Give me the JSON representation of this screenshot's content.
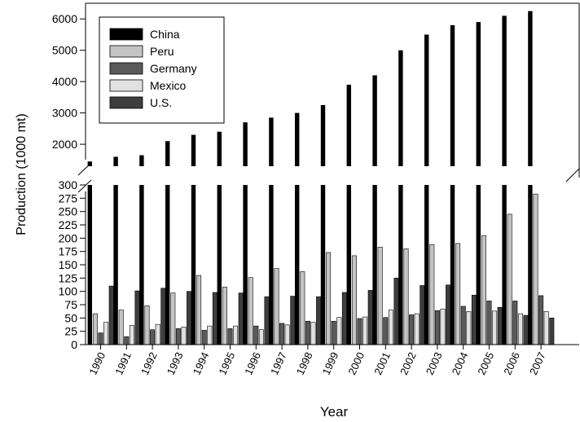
{
  "chart_data": {
    "type": "bar",
    "xlabel": "Year",
    "ylabel": "Production (1000 mt)",
    "categories": [
      "1990",
      "1991",
      "1992",
      "1993",
      "1994",
      "1995",
      "1996",
      "1997",
      "1998",
      "1999",
      "2000",
      "2001",
      "2002",
      "2003",
      "2004",
      "2005",
      "2006",
      "2007"
    ],
    "axis_break": true,
    "upper_ylim": [
      1300,
      6500
    ],
    "upper_ticks": [
      2000,
      3000,
      4000,
      5000,
      6000
    ],
    "lower_ylim": [
      0,
      300
    ],
    "lower_ticks": [
      0,
      25,
      50,
      75,
      100,
      125,
      150,
      175,
      200,
      225,
      250,
      275,
      300
    ],
    "legend_position": "top-left",
    "grid": false,
    "series": [
      {
        "name": "China",
        "color": "#000000",
        "values": [
          1450,
          1600,
          1650,
          2100,
          2300,
          2400,
          2700,
          2850,
          3000,
          3250,
          3900,
          4200,
          5000,
          5500,
          5800,
          5900,
          6100,
          6250
        ]
      },
      {
        "name": "Peru",
        "color": "#c4c4c4",
        "values": [
          58,
          65,
          73,
          97,
          130,
          108,
          126,
          143,
          137,
          173,
          167,
          183,
          180,
          188,
          190,
          205,
          245,
          283
        ]
      },
      {
        "name": "Germany",
        "color": "#5a5a5a",
        "values": [
          22,
          15,
          28,
          30,
          27,
          30,
          35,
          40,
          44,
          44,
          49,
          51,
          56,
          64,
          72,
          82,
          82,
          92
        ]
      },
      {
        "name": "Mexico",
        "color": "#e1e1e1",
        "values": [
          42,
          36,
          38,
          33,
          35,
          35,
          28,
          37,
          42,
          51,
          52,
          65,
          58,
          67,
          62,
          63,
          58,
          62
        ]
      },
      {
        "name": "U.S.",
        "color": "#3e3e3e",
        "values": [
          110,
          101,
          106,
          100,
          98,
          97,
          90,
          91,
          90,
          98,
          102,
          125,
          111,
          112,
          93,
          70,
          55,
          50
        ]
      }
    ]
  }
}
